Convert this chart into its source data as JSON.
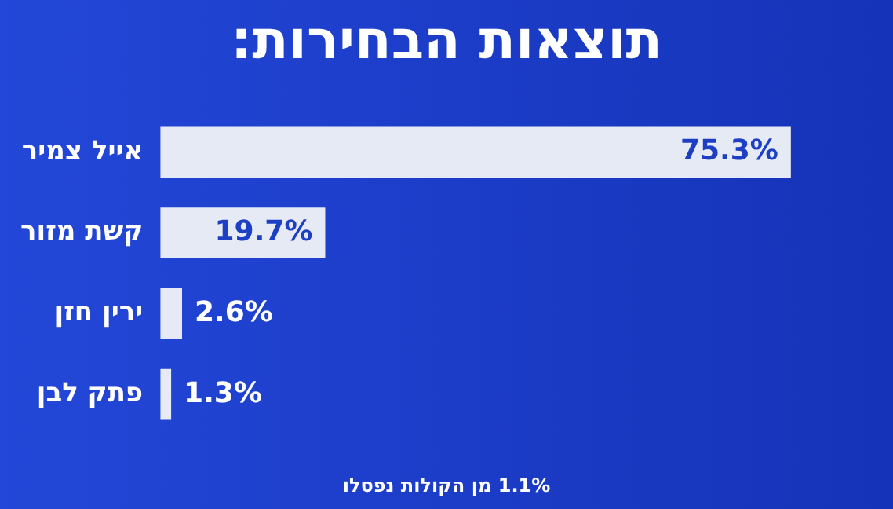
{
  "chart_data": {
    "type": "bar",
    "orientation": "horizontal",
    "title": "תוצאות הבחירות:",
    "categories": [
      "אייל צמיר",
      "קשת מזור",
      "ירין חזן",
      "פתק לבן"
    ],
    "values": [
      75.3,
      19.7,
      2.6,
      1.3
    ],
    "color": "#e6eaf4",
    "data_labels": true,
    "value_labels": [
      "75.3%",
      "19.7%",
      "2.6%",
      "1.3%"
    ],
    "annotations": [
      "1.1% מן הקולות נפסלו"
    ]
  }
}
